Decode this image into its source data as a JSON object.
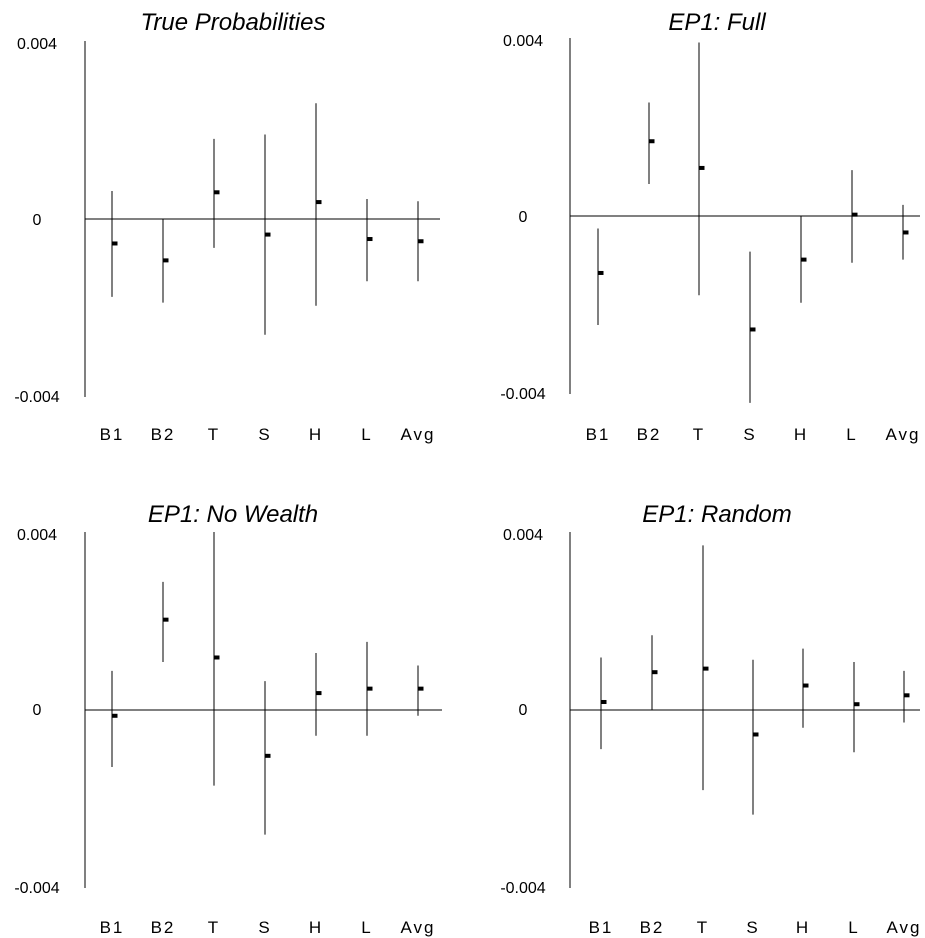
{
  "chart_data": [
    {
      "type": "errorbar",
      "title": "True Probabilities",
      "categories": [
        "B1",
        "B2",
        "T",
        "S",
        "H",
        "L",
        "Avg"
      ],
      "values": [
        -0.00055,
        -0.00093,
        0.0006,
        -0.00035,
        0.00038,
        -0.00045,
        -0.0005
      ],
      "lower": [
        -0.00175,
        -0.00188,
        -0.00065,
        -0.0026,
        -0.00195,
        -0.0014,
        -0.0014
      ],
      "upper": [
        0.00063,
        0.0,
        0.0018,
        0.0019,
        0.0026,
        0.00045,
        0.0004
      ],
      "ylim": [
        -0.004,
        0.004
      ],
      "yticks": [
        "0.004",
        "0",
        "-0.004"
      ],
      "xlabel": "",
      "ylabel": ""
    },
    {
      "type": "errorbar",
      "title": "EP1: Full",
      "categories": [
        "B1",
        "B2",
        "T",
        "S",
        "H",
        "L",
        "Avg"
      ],
      "values": [
        -0.00128,
        0.00168,
        0.00108,
        -0.00255,
        -0.00098,
        3e-05,
        -0.00037
      ],
      "lower": [
        -0.00245,
        0.00072,
        -0.00178,
        -0.0042,
        -0.00195,
        -0.00105,
        -0.00098
      ],
      "upper": [
        -0.00028,
        0.00255,
        0.0039,
        -0.0008,
        0.0,
        0.00103,
        0.00025
      ],
      "ylim": [
        -0.004,
        0.004
      ],
      "yticks": [
        "0.004",
        "0",
        "-0.004"
      ],
      "xlabel": "",
      "ylabel": ""
    },
    {
      "type": "errorbar",
      "title": "EP1: No Wealth",
      "categories": [
        "B1",
        "B2",
        "T",
        "S",
        "H",
        "L",
        "Avg"
      ],
      "values": [
        -0.00013,
        0.00203,
        0.00118,
        -0.00103,
        0.00038,
        0.00048,
        0.00048
      ],
      "lower": [
        -0.00128,
        0.00108,
        -0.0017,
        -0.0028,
        -0.00058,
        -0.00058,
        -0.00013
      ],
      "upper": [
        0.00088,
        0.00288,
        0.004,
        0.00065,
        0.00128,
        0.00153,
        0.001
      ],
      "ylim": [
        -0.004,
        0.004
      ],
      "yticks": [
        "0.004",
        "0",
        "-0.004"
      ],
      "xlabel": "",
      "ylabel": ""
    },
    {
      "type": "errorbar",
      "title": "EP1: Random",
      "categories": [
        "B1",
        "B2",
        "T",
        "S",
        "H",
        "L",
        "Avg"
      ],
      "values": [
        0.00018,
        0.00085,
        0.00093,
        -0.00055,
        0.00055,
        0.00013,
        0.00033
      ],
      "lower": [
        -0.00088,
        0.0,
        -0.0018,
        -0.00235,
        -0.0004,
        -0.00095,
        -0.00028
      ],
      "upper": [
        0.00118,
        0.00168,
        0.0037,
        0.00113,
        0.00138,
        0.00108,
        0.00088
      ],
      "ylim": [
        -0.004,
        0.004
      ],
      "yticks": [
        "0.004",
        "0",
        "-0.004"
      ],
      "xlabel": "",
      "ylabel": ""
    }
  ]
}
